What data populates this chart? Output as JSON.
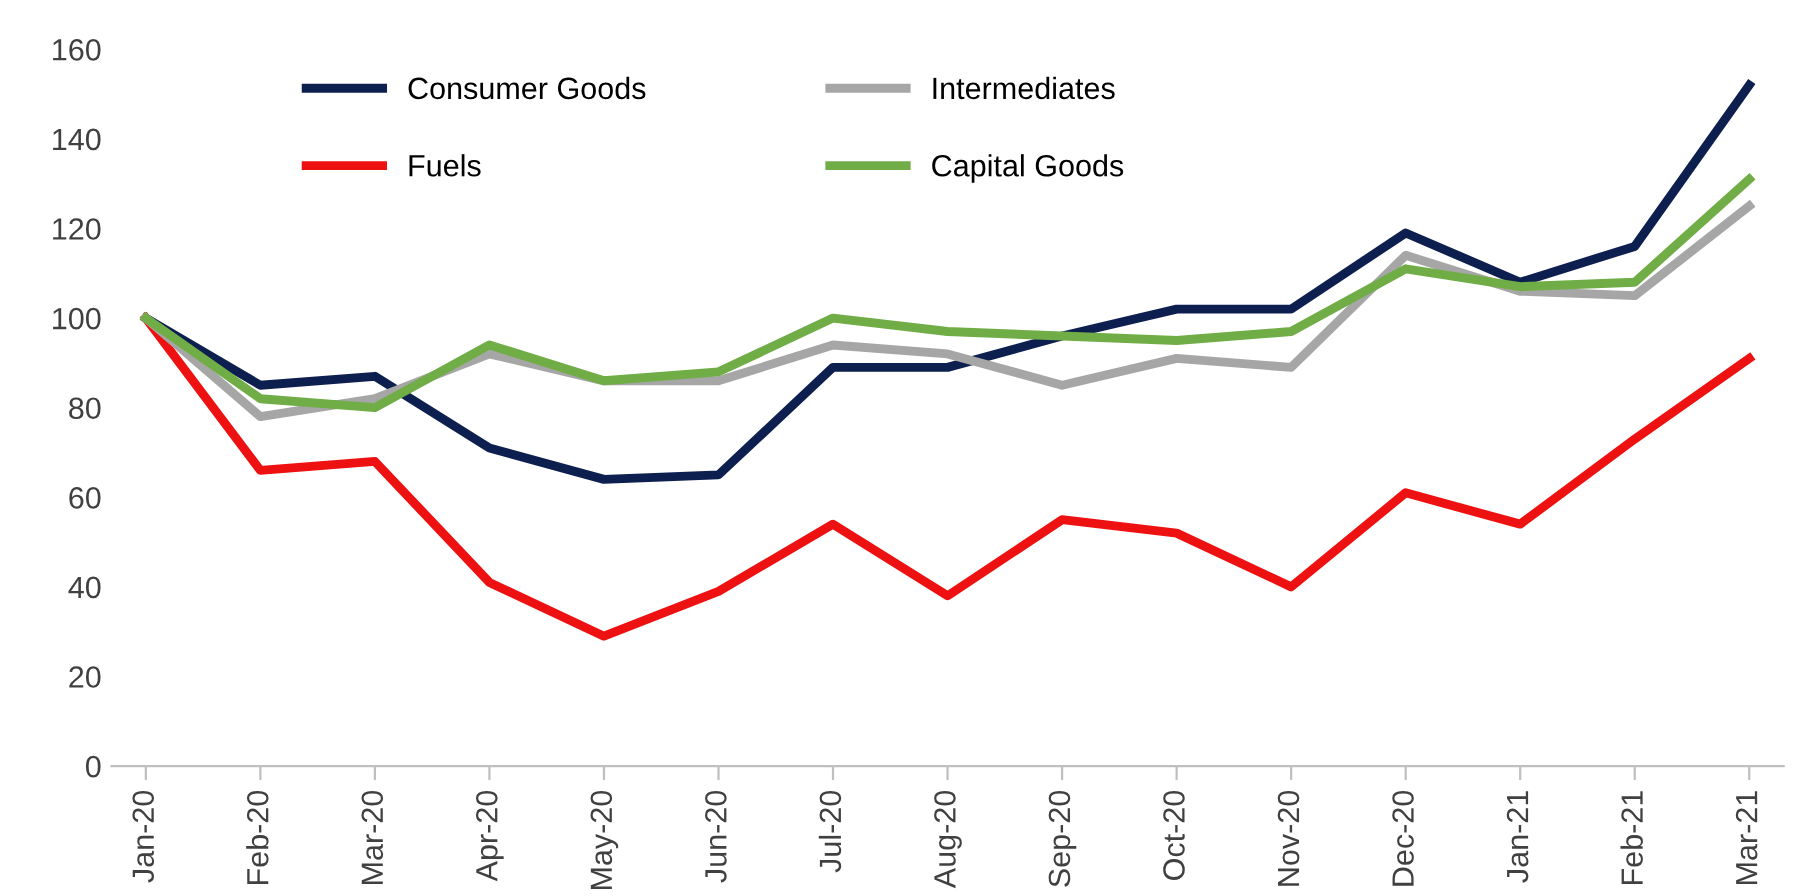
{
  "chart_data": {
    "type": "line",
    "categories": [
      "Jan-20",
      "Feb-20",
      "Mar-20",
      "Apr-20",
      "May-20",
      "Jun-20",
      "Jul-20",
      "Aug-20",
      "Sep-20",
      "Oct-20",
      "Nov-20",
      "Dec-20",
      "Jan-21",
      "Feb-21",
      "Mar-21"
    ],
    "series": [
      {
        "name": "Consumer Goods",
        "color": "#0d1f4f",
        "values": [
          100,
          85,
          87,
          71,
          64,
          65,
          89,
          89,
          96,
          102,
          102,
          119,
          108,
          116,
          152
        ]
      },
      {
        "name": "Fuels",
        "color": "#ee1111",
        "values": [
          100,
          66,
          68,
          41,
          29,
          39,
          54,
          38,
          55,
          52,
          40,
          61,
          54,
          73,
          91
        ]
      },
      {
        "name": "Intermediates",
        "color": "#a6a6a6",
        "values": [
          100,
          78,
          82,
          92,
          86,
          86,
          94,
          92,
          85,
          91,
          89,
          114,
          106,
          105,
          125
        ]
      },
      {
        "name": "Capital Goods",
        "color": "#70ad47",
        "values": [
          100,
          82,
          80,
          94,
          86,
          88,
          100,
          97,
          96,
          95,
          97,
          111,
          107,
          108,
          131
        ]
      }
    ],
    "ylim": [
      0,
      160
    ],
    "yticks": [
      0,
      20,
      40,
      60,
      80,
      100,
      120,
      140,
      160
    ],
    "grid": false,
    "legend": "top left",
    "marker": "none",
    "line_style": "solid"
  }
}
